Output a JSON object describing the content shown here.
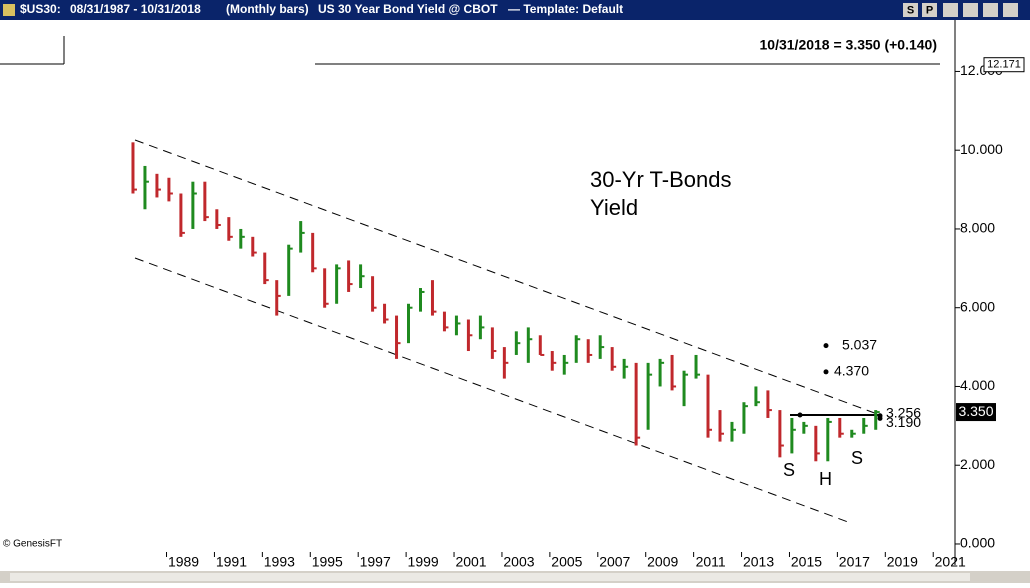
{
  "chart_data": {
    "type": "ohlc",
    "symbol": "$US30:",
    "date_range": "08/31/1987 - 10/31/2018",
    "interval": "(Monthly bars)",
    "title": "US 30 Year Bond Yield @ CBOT",
    "template": "—  Template: Default",
    "buttons": [
      "S",
      "P"
    ],
    "last_quote": "10/31/2018 = 3.350 (+0.140)",
    "annotations": [
      "30-Yr T-Bonds",
      "Yield",
      "S",
      "H",
      "S"
    ],
    "credit": "© GenesisFT",
    "up_color": "#1f8a1f",
    "down_color": "#c0282c",
    "xlim": [
      1982.05,
      2021.7
    ],
    "ylim": [
      -0.28,
      12.9
    ],
    "xticks": [
      1989,
      1991,
      1993,
      1995,
      1997,
      1999,
      2001,
      2003,
      2005,
      2007,
      2009,
      2011,
      2013,
      2015,
      2017,
      2019,
      2021
    ],
    "yticks": [
      {
        "value": 0,
        "label": "0.000"
      },
      {
        "value": 2,
        "label": "2.000"
      },
      {
        "value": 4,
        "label": "4.000"
      },
      {
        "value": 6,
        "label": "6.000"
      },
      {
        "value": 8,
        "label": "8.000"
      },
      {
        "value": 10,
        "label": "10.000"
      },
      {
        "value": 12,
        "label": "12.000"
      }
    ],
    "x": [
      1987.6,
      1988.1,
      1988.6,
      1989.1,
      1989.6,
      1990.1,
      1990.6,
      1991.1,
      1991.6,
      1992.1,
      1992.6,
      1993.1,
      1993.6,
      1994.1,
      1994.6,
      1995.1,
      1995.6,
      1996.1,
      1996.6,
      1997.1,
      1997.6,
      1998.1,
      1998.6,
      1999.1,
      1999.6,
      2000.1,
      2000.6,
      2001.1,
      2001.6,
      2002.1,
      2002.6,
      2003.1,
      2003.6,
      2004.1,
      2004.6,
      2005.1,
      2005.6,
      2006.1,
      2006.6,
      2007.1,
      2007.6,
      2008.1,
      2008.6,
      2009.1,
      2009.6,
      2010.1,
      2010.6,
      2011.1,
      2011.6,
      2012.1,
      2012.6,
      2013.1,
      2013.6,
      2014.1,
      2014.6,
      2015.1,
      2015.6,
      2016.1,
      2016.6,
      2017.1,
      2017.6,
      2018.1,
      2018.6
    ],
    "high": [
      10.2,
      9.6,
      9.4,
      9.3,
      8.9,
      9.2,
      9.2,
      8.5,
      8.3,
      8.0,
      7.8,
      7.4,
      6.7,
      7.6,
      8.2,
      7.9,
      7.0,
      7.1,
      7.2,
      7.1,
      6.8,
      6.1,
      5.8,
      6.1,
      6.5,
      6.7,
      5.9,
      5.8,
      5.7,
      5.8,
      5.5,
      5.0,
      5.4,
      5.5,
      5.3,
      4.9,
      4.8,
      5.3,
      5.2,
      5.3,
      5.0,
      4.7,
      4.6,
      4.6,
      4.7,
      4.8,
      4.4,
      4.8,
      4.3,
      3.4,
      3.1,
      3.6,
      4.0,
      3.9,
      3.4,
      3.2,
      3.1,
      3.0,
      3.2,
      3.2,
      2.9,
      3.2,
      3.4
    ],
    "low": [
      8.9,
      8.5,
      8.8,
      8.7,
      7.8,
      8.0,
      8.2,
      8.0,
      7.7,
      7.5,
      7.3,
      6.6,
      5.8,
      6.3,
      7.4,
      6.9,
      6.0,
      6.1,
      6.4,
      6.5,
      5.9,
      5.6,
      4.7,
      5.1,
      5.9,
      5.8,
      5.4,
      5.3,
      4.9,
      5.2,
      4.7,
      4.2,
      4.8,
      4.6,
      4.8,
      4.4,
      4.3,
      4.6,
      4.6,
      4.7,
      4.4,
      4.2,
      2.5,
      2.9,
      4.0,
      3.9,
      3.5,
      4.2,
      2.7,
      2.6,
      2.6,
      2.8,
      3.5,
      3.2,
      2.2,
      2.3,
      2.8,
      2.1,
      2.1,
      2.7,
      2.7,
      2.8,
      2.9
    ],
    "close": [
      9.0,
      9.2,
      9.0,
      8.9,
      7.9,
      8.9,
      8.3,
      8.1,
      7.8,
      7.8,
      7.4,
      6.7,
      6.3,
      7.5,
      7.9,
      7.0,
      6.1,
      7.0,
      6.6,
      6.8,
      6.0,
      5.7,
      5.1,
      6.0,
      6.4,
      5.9,
      5.5,
      5.6,
      5.3,
      5.5,
      4.9,
      4.6,
      5.1,
      5.2,
      4.8,
      4.6,
      4.6,
      5.2,
      4.8,
      5.0,
      4.5,
      4.5,
      2.7,
      4.3,
      4.6,
      4.0,
      4.3,
      4.3,
      2.9,
      2.8,
      2.9,
      3.5,
      3.6,
      3.4,
      2.5,
      2.9,
      3.0,
      2.3,
      3.1,
      2.8,
      2.8,
      3.0,
      3.35
    ],
    "markers": [
      5.037,
      {
        "value": 4.37,
        "label": "4.370"
      },
      3.256,
      {
        "value": 3.19,
        "label": "3.190"
      }
    ],
    "range_high": 12.171,
    "last_value": {
      "value": 3.35,
      "label": "3.350"
    }
  }
}
